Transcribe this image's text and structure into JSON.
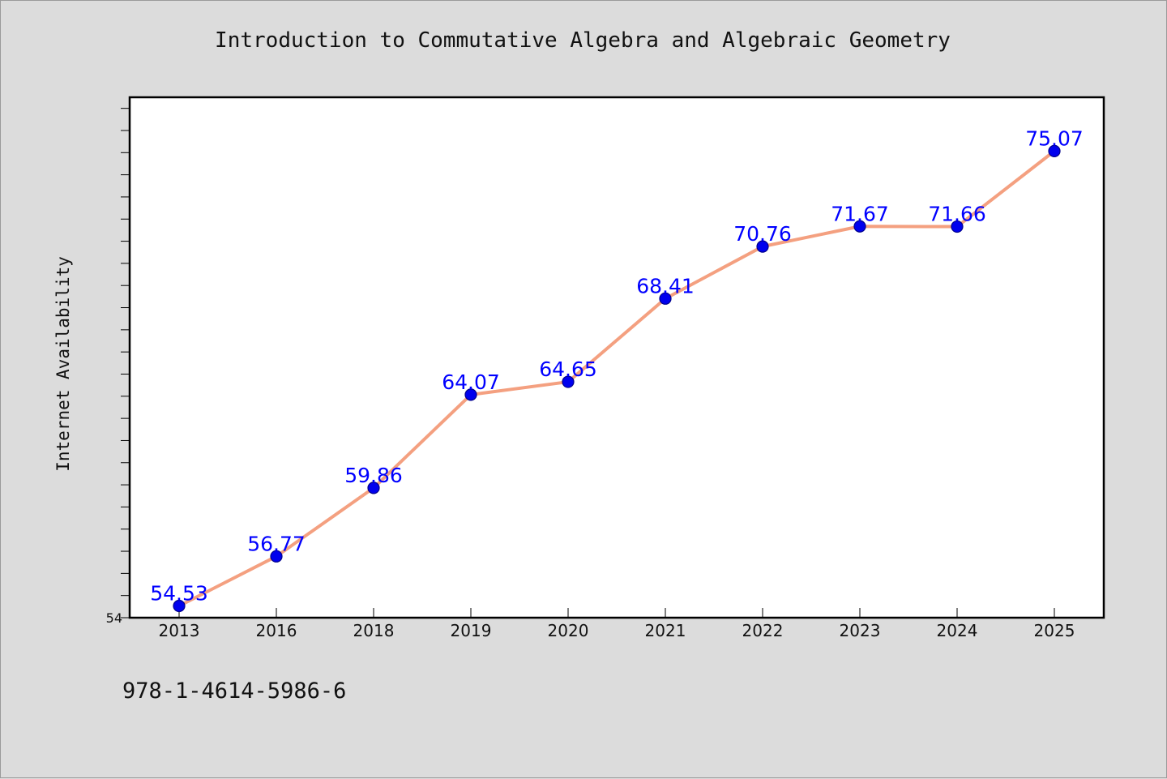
{
  "chart_data": {
    "type": "line",
    "title": "Introduction to Commutative Algebra and Algebraic Geometry",
    "xlabel": "",
    "ylabel": "Internet Availability",
    "categories": [
      "2013",
      "2016",
      "2018",
      "2019",
      "2020",
      "2021",
      "2022",
      "2023",
      "2024",
      "2025"
    ],
    "values": [
      54.53,
      56.77,
      59.86,
      64.07,
      64.65,
      68.41,
      70.76,
      71.67,
      71.66,
      75.07
    ],
    "data_labels": [
      "54.53",
      "56.77",
      "59.86",
      "64.07",
      "64.65",
      "68.41",
      "70.76",
      "71.67",
      "71.66",
      "75.07"
    ],
    "ylim": [
      54,
      77.5
    ],
    "y_tick_labels": [
      "54"
    ],
    "grid": false,
    "line_color": "#f4a080",
    "marker_color": "#0000ee",
    "label_color": "#0000ff"
  },
  "footer": {
    "code": "978-1-4614-5986-6"
  }
}
